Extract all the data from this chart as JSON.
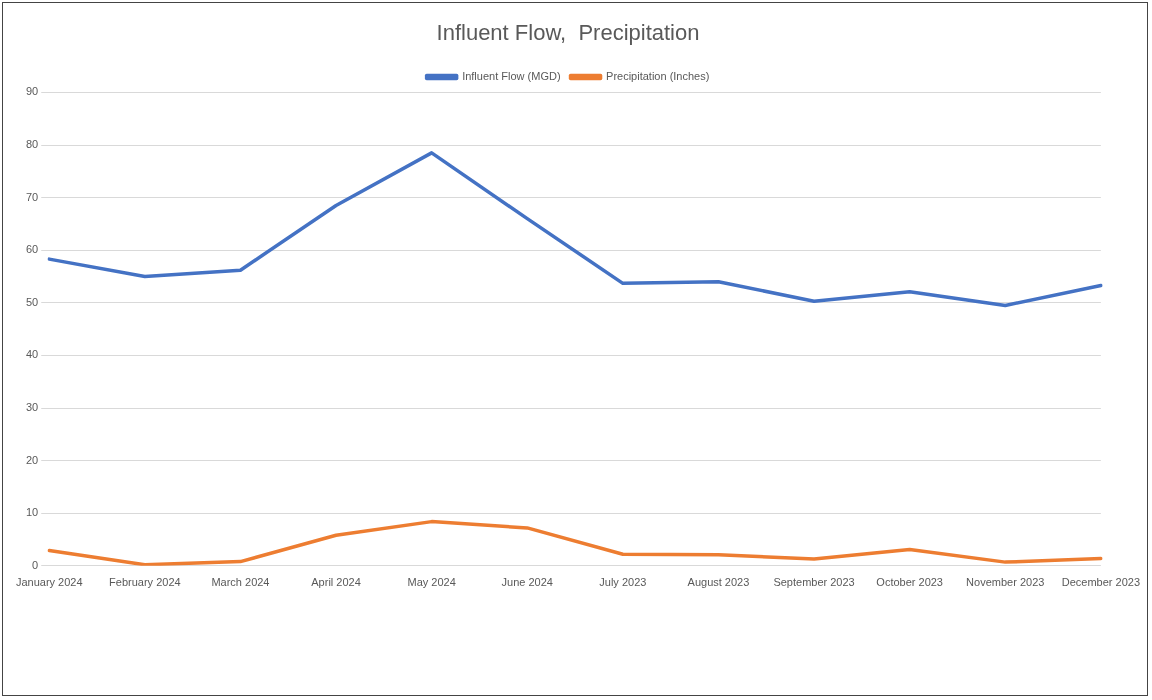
{
  "chart_data": {
    "type": "line",
    "title": "Influent Flow,  Precipitation",
    "categories": [
      "January 2024",
      "February 2024",
      "March 2024",
      "April 2024",
      "May 2024",
      "June 2024",
      "July 2023",
      "August 2023",
      "September 2023",
      "October 2023",
      "November 2023",
      "December 2023"
    ],
    "series": [
      {
        "name": "Influent Flow (MGD)",
        "color": "#4472c4",
        "values": [
          58.3,
          55,
          56.2,
          68.5,
          78.5,
          66,
          53.7,
          54,
          50.3,
          52.1,
          49.5,
          53.3
        ]
      },
      {
        "name": "Precipitation (Inches)",
        "color": "#ed7d31",
        "values": [
          2.9,
          0.2,
          0.8,
          5.8,
          8.4,
          7.2,
          2.2,
          2.1,
          1.3,
          3.1,
          0.7,
          1.4
        ]
      }
    ],
    "ylim": [
      0,
      90
    ],
    "yticks": [
      0,
      10,
      20,
      30,
      40,
      50,
      60,
      70,
      80,
      90
    ],
    "grid": "y",
    "legend": "top",
    "marker": "none",
    "line_style": "solid"
  }
}
